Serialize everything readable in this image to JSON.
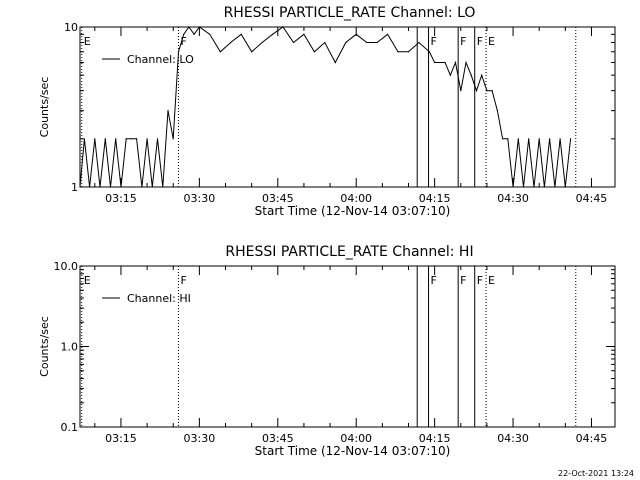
{
  "footer_timestamp": "22-Oct-2021 13:24",
  "chart_data": [
    {
      "type": "line",
      "title": "RHESSI PARTICLE_RATE Channel: LO",
      "xlabel": "Start Time (12-Nov-14 03:07:10)",
      "ylabel": "Counts/sec",
      "y_scale": "log",
      "ylim": [
        1,
        10
      ],
      "y_ticks": [
        {
          "value": 1,
          "label": "1"
        },
        {
          "value": 10,
          "label": "10"
        }
      ],
      "xlim": [
        "03:07:10",
        "04:49:30"
      ],
      "x_ticks": [
        "03:15",
        "03:30",
        "03:45",
        "04:00",
        "04:15",
        "04:30",
        "04:45"
      ],
      "legend": {
        "placement": "top-left",
        "label": "Channel: LO"
      },
      "flags": [
        {
          "time": "03:07:30",
          "label": "E",
          "style": "dotted"
        },
        {
          "time": "03:26:00",
          "label": "F",
          "style": "dotted"
        },
        {
          "time": "04:11:40",
          "label": "",
          "style": "solid"
        },
        {
          "time": "04:13:50",
          "label": "F",
          "style": "solid"
        },
        {
          "time": "04:19:30",
          "label": "F",
          "style": "solid"
        },
        {
          "time": "04:22:40",
          "label": "F",
          "style": "solid"
        },
        {
          "time": "04:24:50",
          "label": "E",
          "style": "dotted"
        },
        {
          "time": "04:42:00",
          "label": "",
          "style": "dotted"
        }
      ],
      "series": [
        {
          "name": "Channel: LO",
          "x": [
            "03:07:10",
            "03:08:00",
            "03:09:00",
            "03:10:00",
            "03:11:00",
            "03:12:00",
            "03:13:00",
            "03:14:00",
            "03:15:00",
            "03:16:00",
            "03:17:00",
            "03:18:00",
            "03:19:00",
            "03:20:00",
            "03:21:00",
            "03:22:00",
            "03:23:00",
            "03:24:00",
            "03:25:00",
            "03:26:00",
            "03:27:00",
            "03:28:00",
            "03:29:00",
            "03:30:00",
            "03:32:00",
            "03:34:00",
            "03:36:00",
            "03:38:00",
            "03:40:00",
            "03:42:00",
            "03:44:00",
            "03:46:00",
            "03:48:00",
            "03:50:00",
            "03:52:00",
            "03:54:00",
            "03:56:00",
            "03:58:00",
            "04:00:00",
            "04:02:00",
            "04:04:00",
            "04:06:00",
            "04:08:00",
            "04:10:00",
            "04:12:00",
            "04:14:00",
            "04:15:00",
            "04:16:00",
            "04:17:00",
            "04:18:00",
            "04:19:00",
            "04:20:00",
            "04:21:00",
            "04:22:00",
            "04:23:00",
            "04:24:00",
            "04:25:00",
            "04:26:00",
            "04:27:00",
            "04:28:00",
            "04:29:00",
            "04:30:00",
            "04:31:00",
            "04:32:00",
            "04:33:00",
            "04:34:00",
            "04:35:00",
            "04:36:00",
            "04:37:00",
            "04:38:00",
            "04:39:00",
            "04:40:00",
            "04:41:00"
          ],
          "y": [
            1,
            2,
            1,
            2,
            1,
            2,
            1,
            2,
            1,
            2,
            2,
            2,
            1,
            2,
            1,
            2,
            1,
            3,
            2,
            7,
            9,
            10,
            9,
            10,
            9,
            7,
            8,
            9,
            7,
            8,
            9,
            10,
            8,
            9,
            7,
            8,
            6,
            8,
            9,
            8,
            8,
            9,
            7,
            7,
            8,
            7,
            6,
            6,
            6,
            5,
            6,
            4,
            6,
            5,
            4,
            5,
            4,
            4,
            3,
            2,
            2,
            1,
            2,
            1,
            2,
            1,
            2,
            1,
            2,
            1,
            2,
            1,
            2
          ]
        }
      ]
    },
    {
      "type": "line",
      "title": "RHESSI PARTICLE_RATE Channel: HI",
      "xlabel": "Start Time (12-Nov-14 03:07:10)",
      "ylabel": "Counts/sec",
      "y_scale": "log",
      "ylim": [
        0.1,
        10
      ],
      "y_ticks": [
        {
          "value": 0.1,
          "label": "0.1"
        },
        {
          "value": 1,
          "label": "1.0"
        },
        {
          "value": 10,
          "label": "10.0"
        }
      ],
      "xlim": [
        "03:07:10",
        "04:49:30"
      ],
      "x_ticks": [
        "03:15",
        "03:30",
        "03:45",
        "04:00",
        "04:15",
        "04:30",
        "04:45"
      ],
      "legend": {
        "placement": "top-left",
        "label": "Channel: HI"
      },
      "flags": [
        {
          "time": "03:07:30",
          "label": "E",
          "style": "dotted"
        },
        {
          "time": "03:26:00",
          "label": "F",
          "style": "dotted"
        },
        {
          "time": "04:11:40",
          "label": "",
          "style": "solid"
        },
        {
          "time": "04:13:50",
          "label": "F",
          "style": "solid"
        },
        {
          "time": "04:19:30",
          "label": "F",
          "style": "solid"
        },
        {
          "time": "04:22:40",
          "label": "F",
          "style": "solid"
        },
        {
          "time": "04:24:50",
          "label": "E",
          "style": "dotted"
        },
        {
          "time": "04:42:00",
          "label": "",
          "style": "dotted"
        }
      ],
      "series": [
        {
          "name": "Channel: HI",
          "x": [],
          "y": []
        }
      ]
    }
  ]
}
